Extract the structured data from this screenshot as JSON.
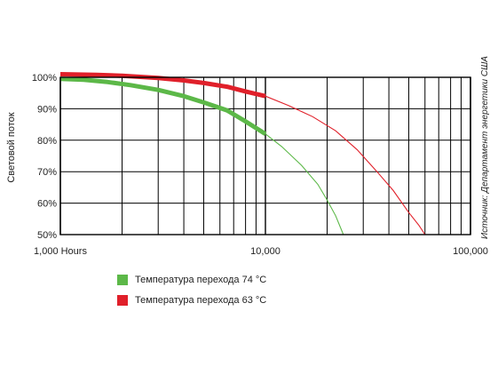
{
  "chart_data": {
    "type": "line",
    "x_scale": "log",
    "xlim": [
      1000,
      100000
    ],
    "ylim": [
      50,
      100
    ],
    "x_tick_values": [
      1000,
      10000,
      100000
    ],
    "x_tick_labels": [
      "1,000 Hours",
      "10,000",
      "100,000"
    ],
    "y_tick_values": [
      50,
      60,
      70,
      80,
      90,
      100
    ],
    "y_tick_labels": [
      "50%",
      "60%",
      "70%",
      "80%",
      "90%",
      "100%"
    ],
    "ylabel": "Световой поток",
    "source_note": "Источник: Департамент энергетики США",
    "grid": true,
    "legend_position": "bottom-left",
    "series": [
      {
        "name": "Температура перехода 74 °C",
        "color": "#5cb848",
        "measured_until": 10000,
        "x": [
          1000,
          1300,
          1700,
          2200,
          3000,
          4000,
          5000,
          6500,
          8000,
          10000,
          12000,
          15000,
          18000,
          20000,
          22000,
          24000
        ],
        "values": [
          99.5,
          99.2,
          98.5,
          97.5,
          96,
          94,
          92,
          89.5,
          86,
          82,
          78,
          72,
          66,
          61,
          56,
          50
        ]
      },
      {
        "name": "Температура перехода 63 °C",
        "color": "#e0202a",
        "measured_until": 10000,
        "x": [
          1000,
          1500,
          2000,
          3000,
          4000,
          5000,
          6500,
          8000,
          10000,
          13000,
          17000,
          22000,
          28000,
          35000,
          42000,
          50000,
          56000,
          60000
        ],
        "values": [
          101,
          100.8,
          100.5,
          99.8,
          99,
          98.2,
          97,
          95.5,
          94,
          91,
          87.5,
          83,
          77,
          70,
          64,
          57,
          53,
          50
        ]
      }
    ]
  }
}
